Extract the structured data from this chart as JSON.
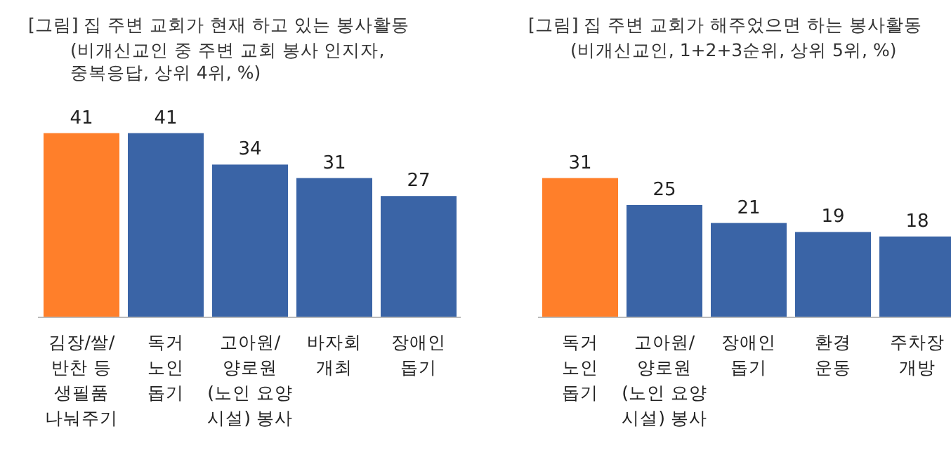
{
  "chart_data": [
    {
      "type": "bar",
      "title": "[그림] 집 주변 교회가 현재 하고 있는 봉사활동",
      "subtitle": "(비개신교인 중 주변 교회 봉사 인지자,\n중복응답, 상위 4위, %)",
      "categories": [
        "김장/쌀/\n반찬 등\n생필품\n나눠주기",
        "독거\n노인\n돕기",
        "고아원/\n양로원\n(노인 요양\n시설) 봉사",
        "바자회\n개최",
        "장애인\n돕기"
      ],
      "values": [
        41,
        41,
        34,
        31,
        27
      ],
      "colors": [
        "#ff7f2a",
        "#3a64a6",
        "#3a64a6",
        "#3a64a6",
        "#3a64a6"
      ],
      "data_labels": true
    },
    {
      "type": "bar",
      "title": "[그림] 집 주변 교회가 해주었으면 하는 봉사활동",
      "subtitle": "(비개신교인, 1+2+3순위, 상위 5위, %)",
      "categories": [
        "독거\n노인\n돕기",
        "고아원/\n양로원\n(노인 요양\n시설) 봉사",
        "장애인\n돕기",
        "환경\n운동",
        "주차장\n개방"
      ],
      "values": [
        31,
        25,
        21,
        19,
        18
      ],
      "colors": [
        "#ff7f2a",
        "#3a64a6",
        "#3a64a6",
        "#3a64a6",
        "#3a64a6"
      ],
      "data_labels": true
    }
  ]
}
